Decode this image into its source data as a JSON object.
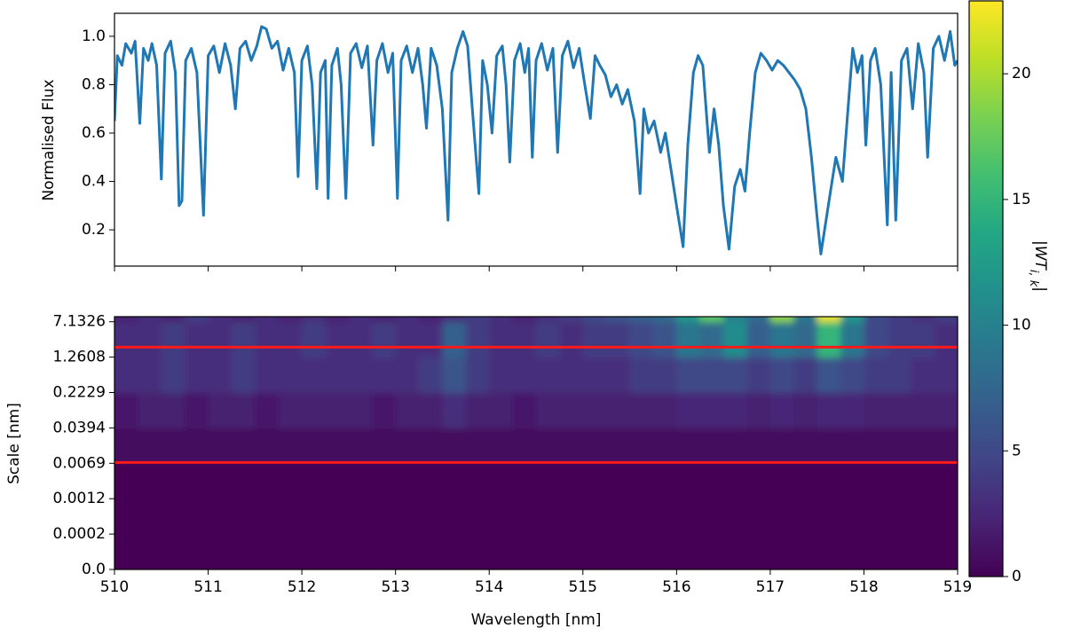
{
  "chart_data": [
    {
      "type": "line",
      "ylabel": "Normalised Flux",
      "xlim": [
        510,
        519
      ],
      "xticks": [
        510,
        511,
        512,
        513,
        514,
        515,
        516,
        517,
        518,
        519
      ],
      "ylim": [
        0.05,
        1.095
      ],
      "yticks": [
        0.2,
        0.4,
        0.6,
        0.8,
        {
          "value": 1,
          "label": "1.0"
        }
      ],
      "color": "#1f77b4",
      "x": [
        510.0,
        510.03,
        510.08,
        510.12,
        510.18,
        510.22,
        510.27,
        510.31,
        510.36,
        510.4,
        510.45,
        510.5,
        510.54,
        510.6,
        510.65,
        510.69,
        510.72,
        510.76,
        510.82,
        510.88,
        510.95,
        511.0,
        511.06,
        511.12,
        511.18,
        511.24,
        511.29,
        511.34,
        511.4,
        511.46,
        511.52,
        511.57,
        511.62,
        511.68,
        511.74,
        511.8,
        511.86,
        511.92,
        511.96,
        512.0,
        512.06,
        512.11,
        512.16,
        512.2,
        512.25,
        512.28,
        512.32,
        512.38,
        512.42,
        512.47,
        512.52,
        512.58,
        512.64,
        512.7,
        512.76,
        512.8,
        512.86,
        512.92,
        512.97,
        513.02,
        513.06,
        513.12,
        513.18,
        513.24,
        513.29,
        513.33,
        513.38,
        513.44,
        513.5,
        513.56,
        513.6,
        513.66,
        513.72,
        513.77,
        513.82,
        513.89,
        513.93,
        513.98,
        514.03,
        514.08,
        514.14,
        514.18,
        514.22,
        514.27,
        514.33,
        514.38,
        514.42,
        514.46,
        514.5,
        514.56,
        514.62,
        514.68,
        514.73,
        514.78,
        514.84,
        514.9,
        514.96,
        515.02,
        515.08,
        515.13,
        515.18,
        515.24,
        515.3,
        515.36,
        515.42,
        515.48,
        515.55,
        515.61,
        515.65,
        515.7,
        515.76,
        515.83,
        515.88,
        515.94,
        516.0,
        516.07,
        516.12,
        516.18,
        516.23,
        516.28,
        516.35,
        516.4,
        516.45,
        516.5,
        516.56,
        516.62,
        516.68,
        516.73,
        516.78,
        516.84,
        516.9,
        516.96,
        517.02,
        517.08,
        517.14,
        517.2,
        517.26,
        517.32,
        517.38,
        517.44,
        517.5,
        517.54,
        517.58,
        517.64,
        517.7,
        517.77,
        517.83,
        517.88,
        517.93,
        517.98,
        518.02,
        518.07,
        518.12,
        518.18,
        518.25,
        518.29,
        518.34,
        518.4,
        518.46,
        518.52,
        518.58,
        518.64,
        518.68,
        518.74,
        518.8,
        518.86,
        518.92,
        518.97,
        519.0
      ],
      "values": [
        0.65,
        0.92,
        0.88,
        0.97,
        0.93,
        0.98,
        0.64,
        0.95,
        0.9,
        0.97,
        0.88,
        0.41,
        0.93,
        0.98,
        0.85,
        0.3,
        0.32,
        0.9,
        0.95,
        0.85,
        0.26,
        0.92,
        0.96,
        0.85,
        0.97,
        0.88,
        0.7,
        0.95,
        0.98,
        0.9,
        0.96,
        1.04,
        1.03,
        0.95,
        0.98,
        0.86,
        0.95,
        0.85,
        0.42,
        0.9,
        0.96,
        0.8,
        0.37,
        0.85,
        0.9,
        0.33,
        0.88,
        0.95,
        0.8,
        0.33,
        0.93,
        0.97,
        0.87,
        0.96,
        0.55,
        0.9,
        0.97,
        0.85,
        0.93,
        0.33,
        0.9,
        0.96,
        0.85,
        0.95,
        0.8,
        0.62,
        0.95,
        0.88,
        0.7,
        0.24,
        0.85,
        0.95,
        1.02,
        0.96,
        0.7,
        0.35,
        0.9,
        0.8,
        0.6,
        0.92,
        0.96,
        0.8,
        0.48,
        0.9,
        0.97,
        0.85,
        0.95,
        0.5,
        0.9,
        0.97,
        0.86,
        0.95,
        0.52,
        0.92,
        0.98,
        0.87,
        0.95,
        0.8,
        0.66,
        0.92,
        0.88,
        0.84,
        0.75,
        0.8,
        0.72,
        0.78,
        0.65,
        0.35,
        0.7,
        0.6,
        0.65,
        0.52,
        0.6,
        0.45,
        0.3,
        0.13,
        0.55,
        0.85,
        0.92,
        0.88,
        0.52,
        0.7,
        0.55,
        0.3,
        0.12,
        0.38,
        0.45,
        0.36,
        0.6,
        0.85,
        0.93,
        0.9,
        0.86,
        0.9,
        0.88,
        0.85,
        0.82,
        0.78,
        0.7,
        0.5,
        0.25,
        0.1,
        0.2,
        0.35,
        0.5,
        0.4,
        0.7,
        0.95,
        0.85,
        0.92,
        0.55,
        0.9,
        0.95,
        0.8,
        0.22,
        0.85,
        0.24,
        0.9,
        0.95,
        0.7,
        0.97,
        0.85,
        0.5,
        0.95,
        1.0,
        0.9,
        1.02,
        0.88,
        0.9
      ]
    },
    {
      "type": "heatmap",
      "xlabel": "Wavelength [nm]",
      "ylabel": "Scale [nm]",
      "xlim": [
        510,
        519
      ],
      "xticks": [
        510,
        511,
        512,
        513,
        514,
        515,
        516,
        517,
        518,
        519
      ],
      "yticks": [
        {
          "value": 0,
          "label": "0.0"
        },
        0.0002,
        0.0012,
        0.0069,
        0.0394,
        0.2229,
        1.2608,
        7.1326
      ],
      "colormap": "viridis",
      "zlim": [
        0,
        22.9
      ],
      "zticks": [
        0,
        5,
        10,
        15,
        20
      ],
      "colorbar_label": [
        "|WT",
        "i, k",
        "|"
      ],
      "hlines": {
        "color": "#ff1a1a",
        "values": [
          2.05,
          0.0072
        ]
      },
      "z": [
        [
          0,
          0,
          0,
          0,
          0,
          0,
          0,
          0,
          0,
          0,
          0,
          0,
          0,
          0,
          0,
          0,
          0,
          0,
          0,
          0,
          0,
          0,
          0,
          0,
          0,
          0,
          0,
          0,
          0,
          0,
          0,
          0,
          0,
          0,
          0,
          0
        ],
        [
          0,
          0,
          0,
          0,
          0,
          0,
          0,
          0,
          0,
          0,
          0,
          0,
          0,
          0,
          0,
          0,
          0,
          0,
          0,
          0,
          0,
          0,
          0,
          0,
          0,
          0,
          0,
          0,
          0,
          0,
          0,
          0,
          0,
          0,
          0,
          0
        ],
        [
          0,
          0,
          0,
          0,
          0,
          0,
          0,
          0,
          0,
          0,
          0,
          0,
          0,
          0,
          0,
          0,
          0,
          0,
          0,
          0,
          0,
          0,
          0,
          0,
          0,
          0,
          0,
          0,
          0,
          0,
          0,
          0,
          0,
          0,
          0,
          0
        ],
        [
          0.6,
          0.6,
          0.6,
          0.6,
          0.6,
          0.6,
          0.6,
          0.6,
          0.6,
          0.6,
          0.6,
          0.6,
          0.6,
          0.6,
          0.6,
          0.6,
          0.6,
          0.6,
          0.6,
          0.6,
          0.6,
          0.6,
          0.6,
          0.6,
          0.6,
          0.6,
          0.6,
          0.6,
          0.6,
          0.6,
          0.6,
          0.6,
          0.6,
          0.6,
          0.6,
          0.6
        ],
        [
          1.5,
          2,
          2,
          1.5,
          2,
          2,
          1.5,
          2,
          2,
          2,
          2,
          1.5,
          2,
          2,
          3,
          2,
          2,
          1.5,
          2,
          2,
          2,
          2,
          2,
          2,
          2.5,
          2.5,
          2.5,
          2,
          2.5,
          2,
          2.5,
          2.5,
          2,
          2,
          2,
          2
        ],
        [
          3,
          3,
          4,
          3,
          3,
          4,
          3,
          3,
          3,
          3,
          3,
          3,
          3,
          4,
          6,
          4,
          3,
          3,
          3,
          3,
          3,
          3,
          4,
          4,
          5,
          5,
          5,
          4,
          5,
          4,
          6,
          5,
          4,
          4,
          3,
          3
        ],
        [
          3,
          3,
          4,
          3,
          3,
          4,
          3,
          3,
          4,
          3,
          3,
          4,
          3,
          3,
          7,
          4,
          3,
          3,
          4,
          3,
          4,
          4,
          5,
          6,
          9,
          8,
          11,
          7,
          9,
          8,
          15,
          9,
          5,
          4,
          4,
          3
        ],
        [
          2,
          3,
          2,
          4,
          3,
          2,
          3,
          2,
          3,
          2,
          3,
          2,
          3,
          2,
          3,
          4,
          3,
          2,
          3,
          4,
          5,
          6,
          7,
          8,
          12,
          17,
          10,
          8,
          19,
          9,
          22,
          12,
          5,
          4,
          3,
          4
        ]
      ]
    }
  ]
}
